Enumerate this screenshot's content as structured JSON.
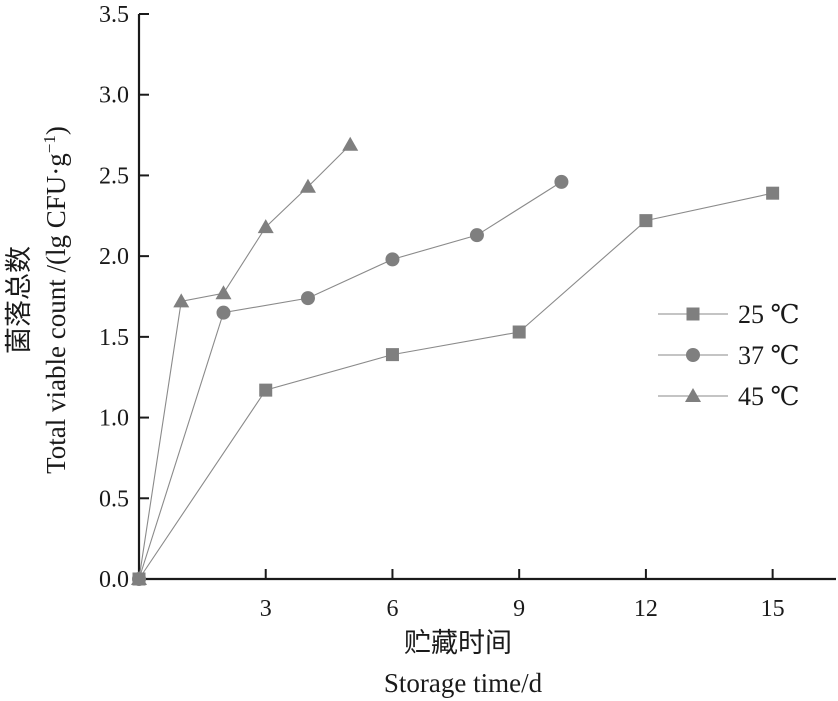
{
  "chart_data": {
    "type": "line",
    "xlabel_cn": "贮藏时间",
    "xlabel_en": "Storage time/d",
    "ylabel_cn": "菌落总数",
    "ylabel_en_main": "Total viable count /(lg CFU·g",
    "ylabel_en_sup": "−1",
    "ylabel_en_close": ")",
    "xlim": [
      0,
      16.5
    ],
    "ylim": [
      0,
      3.5
    ],
    "xticks": [
      3,
      6,
      9,
      12,
      15
    ],
    "xtick_labels": [
      "3",
      "6",
      "9",
      "12",
      "15"
    ],
    "yticks": [
      0,
      0.5,
      1.0,
      1.5,
      2.0,
      2.5,
      3.0,
      3.5
    ],
    "ytick_labels": [
      "0.0",
      "0.5",
      "1.0",
      "1.5",
      "2.0",
      "2.5",
      "3.0",
      "3.5"
    ],
    "grid": false,
    "legend_position": "right",
    "series": [
      {
        "name": "25 ℃",
        "marker": "square",
        "color": "#7f7f7f",
        "x": [
          0,
          3,
          6,
          9,
          12,
          15
        ],
        "y": [
          0.0,
          1.17,
          1.39,
          1.53,
          2.22,
          2.39
        ]
      },
      {
        "name": "37 ℃",
        "marker": "circle",
        "color": "#7f7f7f",
        "x": [
          0,
          2,
          4,
          6,
          8,
          10
        ],
        "y": [
          0.0,
          1.65,
          1.74,
          1.98,
          2.13,
          2.46
        ]
      },
      {
        "name": "45 ℃",
        "marker": "triangle",
        "color": "#7f7f7f",
        "x": [
          0,
          1,
          2,
          3,
          4,
          5
        ],
        "y": [
          0.0,
          1.72,
          1.77,
          2.18,
          2.43,
          2.69
        ]
      }
    ]
  }
}
